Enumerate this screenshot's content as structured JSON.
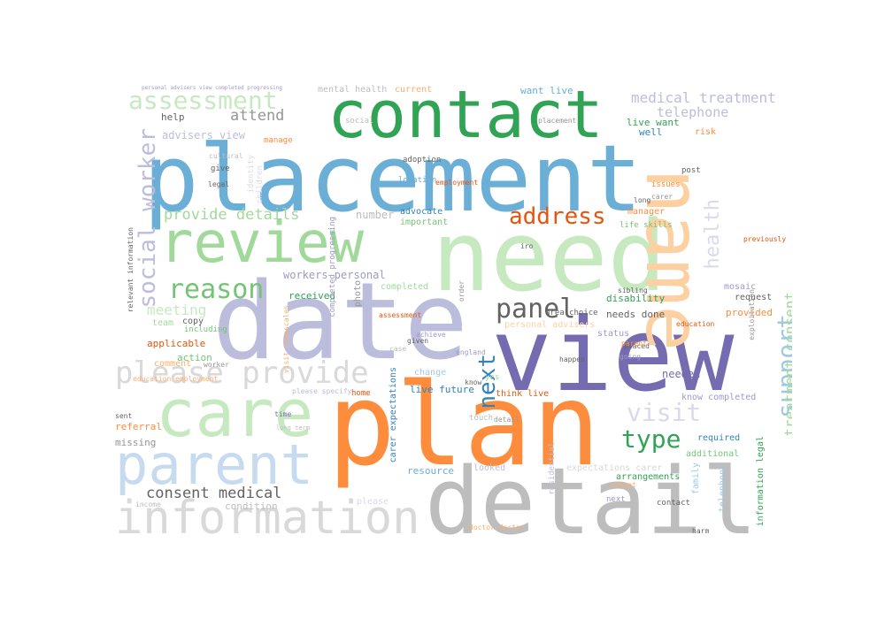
{
  "words": [
    {
      "text": "placement",
      "color": "#6baed6"
    },
    {
      "text": "date",
      "color": "#bcbddc"
    },
    {
      "text": "view",
      "color": "#756bb1"
    },
    {
      "text": "plan",
      "color": "#fd8d3c"
    },
    {
      "text": "detail",
      "color": "#bdbdbd"
    },
    {
      "text": "need",
      "color": "#c7e9c0"
    },
    {
      "text": "contact",
      "color": "#31a354"
    },
    {
      "text": "name",
      "color": "#fdd0a2"
    },
    {
      "text": "review",
      "color": "#a1d99b"
    },
    {
      "text": "care",
      "color": "#c7e9c0"
    },
    {
      "text": "parent",
      "color": "#c6dbef"
    },
    {
      "text": "information",
      "color": "#d9d9d9"
    },
    {
      "text": "please provide",
      "color": "#d9d9d9"
    },
    {
      "text": "assessment",
      "color": "#c7e9c0"
    },
    {
      "text": "social worker",
      "color": "#bcbddc"
    },
    {
      "text": "support",
      "color": "#9ecae1"
    },
    {
      "text": "address",
      "color": "#e6550d"
    },
    {
      "text": "reason",
      "color": "#74c476"
    },
    {
      "text": "panel",
      "color": "#636363"
    },
    {
      "text": "health",
      "color": "#dadaeb"
    },
    {
      "text": "visit",
      "color": "#dadaeb"
    },
    {
      "text": "type",
      "color": "#31a354"
    },
    {
      "text": "next",
      "color": "#3182bd"
    },
    {
      "text": "medical treatment",
      "color": "#bcbddc"
    },
    {
      "text": "provide details",
      "color": "#a1d99b"
    },
    {
      "text": "consent medical",
      "color": "#636363"
    },
    {
      "text": "treatment consent",
      "color": "#a1d99b"
    },
    {
      "text": "meeting",
      "color": "#c7e9c0"
    },
    {
      "text": "attend",
      "color": "#969696"
    },
    {
      "text": "telephone",
      "color": "#bcbddc"
    },
    {
      "text": "mental health",
      "color": "#bdbdbd"
    },
    {
      "text": "advisers view",
      "color": "#bcbddc"
    },
    {
      "text": "live want",
      "color": "#31a354"
    },
    {
      "text": "want live",
      "color": "#6baed6"
    },
    {
      "text": "well",
      "color": "#3182bd"
    },
    {
      "text": "current",
      "color": "#fdae6b"
    },
    {
      "text": "help",
      "color": "#636363"
    },
    {
      "text": "workers personal",
      "color": "#9e9ac8"
    },
    {
      "text": "received",
      "color": "#31a354"
    },
    {
      "text": "completed",
      "color": "#a1d99b"
    },
    {
      "text": "number",
      "color": "#bdbdbd"
    },
    {
      "text": "advocate",
      "color": "#3182bd"
    },
    {
      "text": "important",
      "color": "#74c476"
    },
    {
      "text": "photo",
      "color": "#969696"
    },
    {
      "text": "disability",
      "color": "#31a354"
    },
    {
      "text": "needs done",
      "color": "#636363"
    },
    {
      "text": "provided",
      "color": "#fd8d3c"
    },
    {
      "text": "request",
      "color": "#636363"
    },
    {
      "text": "needed",
      "color": "#756bb1"
    },
    {
      "text": "know completed",
      "color": "#9e9ac8"
    },
    {
      "text": "live future",
      "color": "#3182bd"
    },
    {
      "text": "change",
      "color": "#9ecae1"
    },
    {
      "text": "action",
      "color": "#74c476"
    },
    {
      "text": "comment",
      "color": "#fdae6b"
    },
    {
      "text": "applicable",
      "color": "#e6550d"
    },
    {
      "text": "team",
      "color": "#a1d99b"
    },
    {
      "text": "copy",
      "color": "#636363"
    },
    {
      "text": "referral",
      "color": "#fd8d3c"
    },
    {
      "text": "missing",
      "color": "#969696"
    },
    {
      "text": "condition",
      "color": "#bdbdbd"
    },
    {
      "text": "resource",
      "color": "#6baed6"
    },
    {
      "text": "required",
      "color": "#3182bd"
    },
    {
      "text": "additional",
      "color": "#74c476"
    },
    {
      "text": "arrangements",
      "color": "#31a354"
    },
    {
      "text": "expectations carer",
      "color": "#d9d9d9"
    },
    {
      "text": "family",
      "color": "#9ecae1"
    },
    {
      "text": "information legal",
      "color": "#31a354"
    },
    {
      "text": "telephone",
      "color": "#9ecae1"
    },
    {
      "text": "contact",
      "color": "#636363"
    },
    {
      "text": "next",
      "color": "#9e9ac8"
    },
    {
      "text": "please",
      "color": "#dadaeb"
    },
    {
      "text": "looked",
      "color": "#bcbddc"
    },
    {
      "text": "think live",
      "color": "#e6550d"
    },
    {
      "text": "home",
      "color": "#e6550d"
    },
    {
      "text": "yes",
      "color": "#a1d99b"
    },
    {
      "text": "touch",
      "color": "#bdbdbd"
    },
    {
      "text": "carer expectations",
      "color": "#3182bd"
    },
    {
      "text": "residential",
      "color": "#bcbddc"
    },
    {
      "text": "manager",
      "color": "#fd8d3c"
    },
    {
      "text": "life skills",
      "color": "#74c476"
    },
    {
      "text": "location",
      "color": "#6baed6"
    },
    {
      "text": "adoption",
      "color": "#636363"
    },
    {
      "text": "employment",
      "color": "#e6550d"
    },
    {
      "text": "manage",
      "color": "#fd8d3c"
    },
    {
      "text": "children",
      "color": "#dadaeb"
    },
    {
      "text": "identity",
      "color": "#dadaeb"
    },
    {
      "text": "area choice",
      "color": "#636363"
    },
    {
      "text": "mosaic",
      "color": "#9e9ac8"
    },
    {
      "text": "risk",
      "color": "#fd8d3c"
    },
    {
      "text": "post",
      "color": "#636363"
    },
    {
      "text": "issues",
      "color": "#fd8d3c"
    },
    {
      "text": "previously",
      "color": "#e6550d"
    },
    {
      "text": "exploitation",
      "color": "#969696"
    },
    {
      "text": "education",
      "color": "#e6550d"
    },
    {
      "text": "order",
      "color": "#969696"
    },
    {
      "text": "placed",
      "color": "#636363"
    },
    {
      "text": "going",
      "color": "#9e9ac8"
    },
    {
      "text": "england",
      "color": "#9e9ac8"
    },
    {
      "text": "achieve",
      "color": "#9e9ac8"
    },
    {
      "text": "given",
      "color": "#636363"
    },
    {
      "text": "case",
      "color": "#bdbdbd"
    },
    {
      "text": "status",
      "color": "#9e9ac8"
    },
    {
      "text": "personal advisers",
      "color": "#fdd0a2"
    },
    {
      "text": "relevant information",
      "color": "#636363"
    },
    {
      "text": "visit timescales",
      "color": "#fdae6b"
    },
    {
      "text": "completed progressing",
      "color": "#9e9ac8"
    },
    {
      "text": "including",
      "color": "#74c476"
    },
    {
      "text": "assessment",
      "color": "#e6550d"
    },
    {
      "text": "social",
      "color": "#bdbdbd"
    },
    {
      "text": "give",
      "color": "#636363"
    },
    {
      "text": "legal",
      "color": "#636363"
    },
    {
      "text": "cultural",
      "color": "#bdbdbd"
    },
    {
      "text": "worker",
      "color": "#969696"
    },
    {
      "text": "education employment",
      "color": "#fdae6b"
    },
    {
      "text": "sent",
      "color": "#636363"
    },
    {
      "text": "time",
      "color": "#756bb1"
    },
    {
      "text": "please specify",
      "color": "#bcbddc"
    },
    {
      "text": "long term",
      "color": "#bdbdbd"
    },
    {
      "text": "doctor doctor",
      "color": "#fdae6b"
    },
    {
      "text": "income",
      "color": "#bdbdbd"
    },
    {
      "text": "moment",
      "color": "#fdae6b"
    },
    {
      "text": "know",
      "color": "#636363"
    },
    {
      "text": "parent",
      "color": "#fd8d3c"
    },
    {
      "text": "happen",
      "color": "#636363"
    },
    {
      "text": "harm",
      "color": "#636363"
    },
    {
      "text": "sibling",
      "color": "#636363"
    },
    {
      "text": "placement",
      "color": "#969696"
    },
    {
      "text": "detail",
      "color": "#969696"
    },
    {
      "text": "long",
      "color": "#636363"
    },
    {
      "text": "carer",
      "color": "#969696"
    },
    {
      "text": "iro",
      "color": "#636363"
    },
    {
      "text": "personal advisers view completed progressing",
      "color": "#9e9ac8"
    }
  ]
}
